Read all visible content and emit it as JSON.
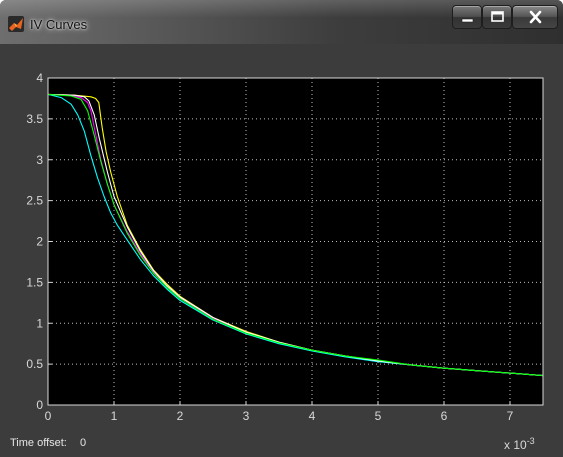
{
  "window": {
    "title": "IV Curves",
    "app_icon": "matlab-icon",
    "controls": [
      "minimize-icon",
      "maximize-icon",
      "close-icon"
    ]
  },
  "status": {
    "time_offset_label": "Time offset:",
    "time_offset_value": "0"
  },
  "chart_data": {
    "type": "line",
    "title": "",
    "xlabel": "",
    "ylabel": "",
    "x_multiplier_base": "x 10",
    "x_multiplier_exp": "-3",
    "xlim": [
      0,
      7.5
    ],
    "ylim": [
      0,
      4
    ],
    "xticks": [
      "0",
      "1",
      "2",
      "3",
      "4",
      "5",
      "6",
      "7"
    ],
    "yticks": [
      "0",
      "0.5",
      "1",
      "1.5",
      "2",
      "2.5",
      "3",
      "3.5",
      "4"
    ],
    "grid": true,
    "background": "#000000",
    "axis_color": "#d8d8d8",
    "series": [
      {
        "color": "#ffff00",
        "x": [
          0,
          0.4,
          0.65,
          0.72,
          0.77,
          0.82,
          0.88,
          0.95,
          1.05,
          1.2,
          1.4,
          1.6,
          1.8,
          2.0,
          2.5,
          3.0,
          3.5,
          4.0,
          4.5,
          5.0,
          5.5,
          6.0,
          6.5,
          7.0,
          7.5
        ],
        "y": [
          3.8,
          3.79,
          3.77,
          3.75,
          3.7,
          3.4,
          3.1,
          2.85,
          2.55,
          2.2,
          1.9,
          1.65,
          1.48,
          1.33,
          1.07,
          0.9,
          0.77,
          0.67,
          0.6,
          0.54,
          0.49,
          0.45,
          0.42,
          0.39,
          0.36
        ]
      },
      {
        "color": "#ff00ff",
        "x": [
          0,
          0.3,
          0.5,
          0.6,
          0.65,
          0.7,
          0.8,
          0.9,
          1.0,
          1.2,
          1.4,
          1.6,
          1.8,
          2.0,
          2.5,
          3.0,
          3.5,
          4.0,
          4.5,
          5.0,
          5.5,
          6.0,
          6.5,
          7.0,
          7.5
        ],
        "y": [
          3.8,
          3.79,
          3.76,
          3.7,
          3.6,
          3.4,
          3.0,
          2.7,
          2.45,
          2.12,
          1.85,
          1.62,
          1.45,
          1.31,
          1.06,
          0.89,
          0.76,
          0.67,
          0.6,
          0.54,
          0.49,
          0.45,
          0.42,
          0.39,
          0.36
        ]
      },
      {
        "color": "#00ffff",
        "x": [
          0,
          0.2,
          0.35,
          0.45,
          0.55,
          0.65,
          0.75,
          0.85,
          0.95,
          1.05,
          1.2,
          1.4,
          1.6,
          1.8,
          2.0,
          2.5,
          3.0,
          3.5,
          4.0,
          4.5,
          5.0,
          5.5,
          6.0,
          6.5,
          7.0,
          7.5
        ],
        "y": [
          3.8,
          3.76,
          3.68,
          3.55,
          3.35,
          3.05,
          2.78,
          2.55,
          2.35,
          2.2,
          2.02,
          1.78,
          1.58,
          1.42,
          1.28,
          1.04,
          0.87,
          0.75,
          0.66,
          0.59,
          0.53,
          0.49,
          0.45,
          0.42,
          0.39,
          0.36
        ]
      },
      {
        "color": "#ffffff",
        "x": [
          0,
          0.4,
          0.55,
          0.62,
          0.7,
          0.78,
          0.9,
          1.0,
          1.2,
          1.4,
          1.6,
          1.8,
          2.0,
          2.5,
          3.0,
          3.5,
          4.0,
          4.5,
          5.0,
          5.5,
          6.0,
          6.5,
          7.0,
          7.5
        ],
        "y": [
          3.8,
          3.79,
          3.77,
          3.72,
          3.55,
          3.25,
          2.85,
          2.55,
          2.18,
          1.88,
          1.64,
          1.46,
          1.32,
          1.07,
          0.89,
          0.77,
          0.67,
          0.6,
          0.54,
          0.49,
          0.45,
          0.42,
          0.39,
          0.36
        ]
      },
      {
        "color": "#00ff00",
        "x": [
          0,
          0.35,
          0.5,
          0.6,
          0.7,
          0.8,
          0.9,
          1.0,
          1.2,
          1.4,
          1.6,
          1.8,
          2.0,
          2.5,
          3.0,
          3.5,
          4.0,
          4.5,
          5.0,
          5.5,
          6.0,
          6.5,
          7.0,
          7.5
        ],
        "y": [
          3.8,
          3.78,
          3.74,
          3.6,
          3.3,
          2.98,
          2.7,
          2.45,
          2.1,
          1.83,
          1.61,
          1.44,
          1.3,
          1.05,
          0.88,
          0.76,
          0.67,
          0.6,
          0.55,
          0.49,
          0.45,
          0.42,
          0.39,
          0.36
        ]
      }
    ]
  }
}
